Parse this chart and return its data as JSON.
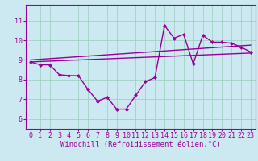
{
  "title": "",
  "xlabel": "Windchill (Refroidissement éolien,°C)",
  "background_color": "#cce8f0",
  "line_color": "#990099",
  "xlim": [
    -0.5,
    23.5
  ],
  "ylim": [
    5.5,
    11.8
  ],
  "yticks": [
    6,
    7,
    8,
    9,
    10,
    11
  ],
  "xticks": [
    0,
    1,
    2,
    3,
    4,
    5,
    6,
    7,
    8,
    9,
    10,
    11,
    12,
    13,
    14,
    15,
    16,
    17,
    18,
    19,
    20,
    21,
    22,
    23
  ],
  "hours": [
    0,
    1,
    2,
    3,
    4,
    5,
    6,
    7,
    8,
    9,
    10,
    11,
    12,
    13,
    14,
    15,
    16,
    17,
    18,
    19,
    20,
    21,
    22,
    23
  ],
  "temp_line": [
    8.9,
    8.75,
    8.75,
    8.25,
    8.2,
    8.2,
    7.5,
    6.9,
    7.1,
    6.5,
    6.5,
    7.2,
    7.9,
    8.1,
    10.75,
    10.1,
    10.3,
    8.8,
    10.25,
    9.9,
    9.9,
    9.85,
    9.65,
    9.4
  ],
  "trend_line1_x": [
    0,
    23
  ],
  "trend_line1_y": [
    8.9,
    9.35
  ],
  "trend_line2_x": [
    0,
    23
  ],
  "trend_line2_y": [
    9.0,
    9.75
  ],
  "grid_color": "#99ccbb",
  "marker": "D",
  "markersize": 2.5,
  "linewidth": 1.0
}
